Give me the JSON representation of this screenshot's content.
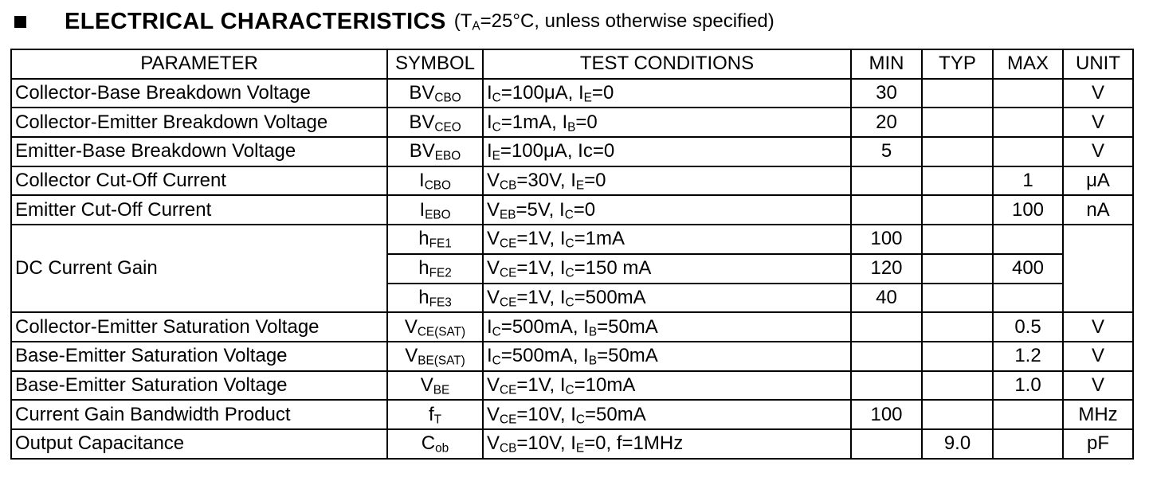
{
  "heading": {
    "title": "ELECTRICAL CHARACTERISTICS",
    "condition": [
      {
        "t": "("
      },
      {
        "t": "T"
      },
      {
        "t": "A",
        "sub": true
      },
      {
        "t": "=25°C, unless otherwise specified)"
      }
    ]
  },
  "columns": [
    "PARAMETER",
    "SYMBOL",
    "TEST CONDITIONS",
    "MIN",
    "TYP",
    "MAX",
    "UNIT"
  ],
  "rows": [
    {
      "parameter": "Collector-Base Breakdown Voltage",
      "symbol": [
        {
          "t": "BV"
        },
        {
          "t": "CBO",
          "sub": true
        }
      ],
      "conditions": [
        {
          "t": "I"
        },
        {
          "t": "C",
          "sub": true
        },
        {
          "t": "=100μA, I"
        },
        {
          "t": "E",
          "sub": true
        },
        {
          "t": "=0"
        }
      ],
      "min": "30",
      "typ": "",
      "max": "",
      "unit": "V"
    },
    {
      "parameter": "Collector-Emitter Breakdown Voltage",
      "symbol": [
        {
          "t": "BV"
        },
        {
          "t": "CEO",
          "sub": true
        }
      ],
      "conditions": [
        {
          "t": "I"
        },
        {
          "t": "C",
          "sub": true
        },
        {
          "t": "=1mA, I"
        },
        {
          "t": "B",
          "sub": true
        },
        {
          "t": "=0"
        }
      ],
      "min": "20",
      "typ": "",
      "max": "",
      "unit": "V"
    },
    {
      "parameter": "Emitter-Base Breakdown Voltage",
      "symbol": [
        {
          "t": "BV"
        },
        {
          "t": "EBO",
          "sub": true
        }
      ],
      "conditions": [
        {
          "t": "I"
        },
        {
          "t": "E",
          "sub": true
        },
        {
          "t": "=100μA, Ic=0"
        }
      ],
      "min": "5",
      "typ": "",
      "max": "",
      "unit": "V"
    },
    {
      "parameter": "Collector Cut-Off Current",
      "symbol": [
        {
          "t": "I"
        },
        {
          "t": "CBO",
          "sub": true
        }
      ],
      "conditions": [
        {
          "t": "V"
        },
        {
          "t": "CB",
          "sub": true
        },
        {
          "t": "=30V, I"
        },
        {
          "t": "E",
          "sub": true
        },
        {
          "t": "=0"
        }
      ],
      "min": "",
      "typ": "",
      "max": "1",
      "unit": "μA"
    },
    {
      "parameter": "Emitter Cut-Off Current",
      "symbol": [
        {
          "t": "I"
        },
        {
          "t": "EBO",
          "sub": true
        }
      ],
      "conditions": [
        {
          "t": "V"
        },
        {
          "t": "EB",
          "sub": true
        },
        {
          "t": "=5V, I"
        },
        {
          "t": "C",
          "sub": true
        },
        {
          "t": "=0"
        }
      ],
      "min": "",
      "typ": "",
      "max": "100",
      "unit": "nA"
    },
    {
      "parameter": "DC Current Gain",
      "rowspan": 3,
      "symbol": [
        {
          "t": "h"
        },
        {
          "t": "FE1",
          "sub": true
        }
      ],
      "conditions": [
        {
          "t": "V"
        },
        {
          "t": "CE",
          "sub": true
        },
        {
          "t": "=1V, I"
        },
        {
          "t": "C",
          "sub": true
        },
        {
          "t": "=1mA"
        }
      ],
      "min": "100",
      "typ": "",
      "max": "",
      "unit": "",
      "unitRowspan": 3
    },
    {
      "continuation": true,
      "symbol": [
        {
          "t": "h"
        },
        {
          "t": "FE2",
          "sub": true
        }
      ],
      "conditions": [
        {
          "t": "V"
        },
        {
          "t": "CE",
          "sub": true
        },
        {
          "t": "=1V, I"
        },
        {
          "t": "C",
          "sub": true
        },
        {
          "t": "=150 mA"
        }
      ],
      "min": "120",
      "typ": "",
      "max": "400"
    },
    {
      "continuation": true,
      "symbol": [
        {
          "t": "h"
        },
        {
          "t": "FE3",
          "sub": true
        }
      ],
      "conditions": [
        {
          "t": "V"
        },
        {
          "t": "CE",
          "sub": true
        },
        {
          "t": "=1V, I"
        },
        {
          "t": "C",
          "sub": true
        },
        {
          "t": "=500mA"
        }
      ],
      "min": "40",
      "typ": "",
      "max": ""
    },
    {
      "parameter": "Collector-Emitter Saturation Voltage",
      "symbol": [
        {
          "t": "V"
        },
        {
          "t": "CE(SAT)",
          "sub": true
        }
      ],
      "conditions": [
        {
          "t": "I"
        },
        {
          "t": "C",
          "sub": true
        },
        {
          "t": "=500mA, I"
        },
        {
          "t": "B",
          "sub": true
        },
        {
          "t": "=50mA"
        }
      ],
      "min": "",
      "typ": "",
      "max": "0.5",
      "unit": "V"
    },
    {
      "parameter": "Base-Emitter Saturation Voltage",
      "symbol": [
        {
          "t": "V"
        },
        {
          "t": "BE(SAT)",
          "sub": true
        }
      ],
      "conditions": [
        {
          "t": "I"
        },
        {
          "t": "C",
          "sub": true
        },
        {
          "t": "=500mA, I"
        },
        {
          "t": "B",
          "sub": true
        },
        {
          "t": "=50mA"
        }
      ],
      "min": "",
      "typ": "",
      "max": "1.2",
      "unit": "V"
    },
    {
      "parameter": "Base-Emitter Saturation Voltage",
      "symbol": [
        {
          "t": "V"
        },
        {
          "t": "BE",
          "sub": true
        }
      ],
      "conditions": [
        {
          "t": "V"
        },
        {
          "t": "CE",
          "sub": true
        },
        {
          "t": "=1V, I"
        },
        {
          "t": "C",
          "sub": true
        },
        {
          "t": "=10mA"
        }
      ],
      "min": "",
      "typ": "",
      "max": "1.0",
      "unit": "V"
    },
    {
      "parameter": "Current Gain Bandwidth Product",
      "symbol": [
        {
          "t": "f"
        },
        {
          "t": "T",
          "sub": true
        }
      ],
      "conditions": [
        {
          "t": "V"
        },
        {
          "t": "CE",
          "sub": true
        },
        {
          "t": "=10V, I"
        },
        {
          "t": "C",
          "sub": true
        },
        {
          "t": "=50mA"
        }
      ],
      "min": "100",
      "typ": "",
      "max": "",
      "unit": "MHz"
    },
    {
      "parameter": "Output Capacitance",
      "symbol": [
        {
          "t": "C"
        },
        {
          "t": "ob",
          "sub": true
        }
      ],
      "conditions": [
        {
          "t": "V"
        },
        {
          "t": "CB",
          "sub": true
        },
        {
          "t": "=10V, I"
        },
        {
          "t": "E",
          "sub": true
        },
        {
          "t": "=0, f=1MHz"
        }
      ],
      "min": "",
      "typ": "9.0",
      "max": "",
      "unit": "pF"
    }
  ]
}
